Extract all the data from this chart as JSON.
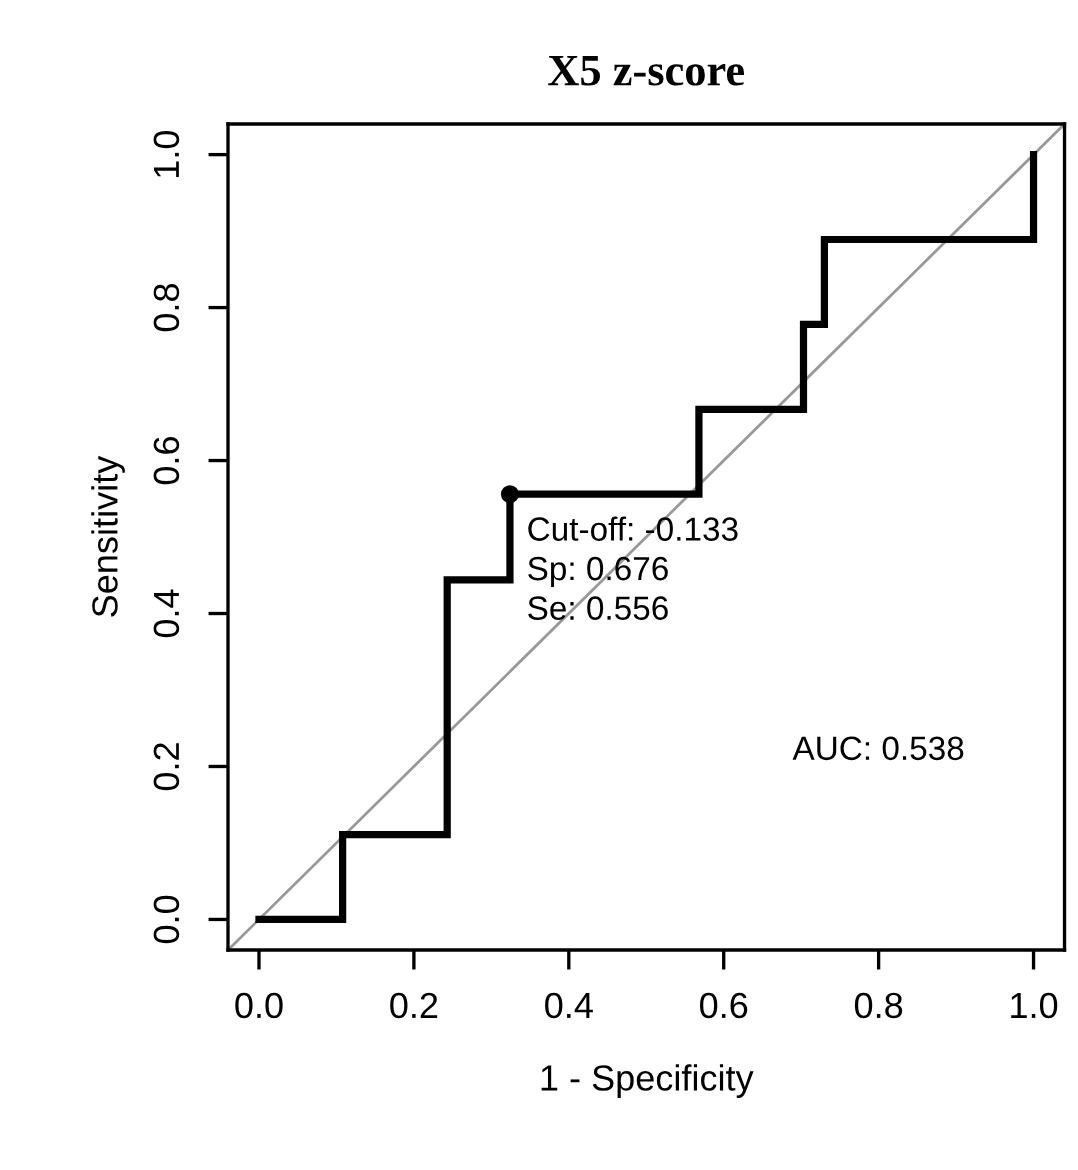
{
  "chart_data": {
    "type": "line",
    "title": "X5 z-score",
    "xlabel": "1 - Specificity",
    "ylabel": "Sensitivity",
    "xlim": [
      -0.04,
      1.04
    ],
    "ylim": [
      -0.04,
      1.04
    ],
    "xticks": [
      {
        "value": 0,
        "label": "0.0"
      },
      0.2,
      0.4,
      0.6,
      0.8,
      {
        "value": 1,
        "label": "1.0"
      }
    ],
    "yticks": [
      {
        "value": 0,
        "label": "0.0"
      },
      0.2,
      0.4,
      0.6,
      0.8,
      {
        "value": 1,
        "label": "1.0"
      }
    ],
    "series": [
      {
        "type": "line",
        "color": "#999999",
        "x": [
          -0.04,
          1.04
        ],
        "values": [
          -0.04,
          1.04
        ]
      },
      {
        "color": "#000000",
        "x": [
          0,
          0.108,
          0.108,
          0.243,
          0.243,
          0.324,
          0.324,
          0.568,
          0.568,
          0.703,
          0.703,
          0.73,
          0.73,
          1,
          1
        ],
        "values": [
          0,
          0,
          0.111,
          0.111,
          0.444,
          0.444,
          0.556,
          0.556,
          0.667,
          0.667,
          0.778,
          0.778,
          0.889,
          0.889,
          1
        ]
      },
      {
        "type": "scatter",
        "color": "#000000",
        "x": [
          0.324
        ],
        "values": [
          0.556
        ]
      }
    ],
    "annotations": [
      {
        "text": "Cut-off: -0.133\nSp: 0.676\nSe: 0.556",
        "x": 0.324,
        "y": 0.556
      },
      "AUC: 0.538"
    ],
    "grid": false,
    "legend": false
  }
}
